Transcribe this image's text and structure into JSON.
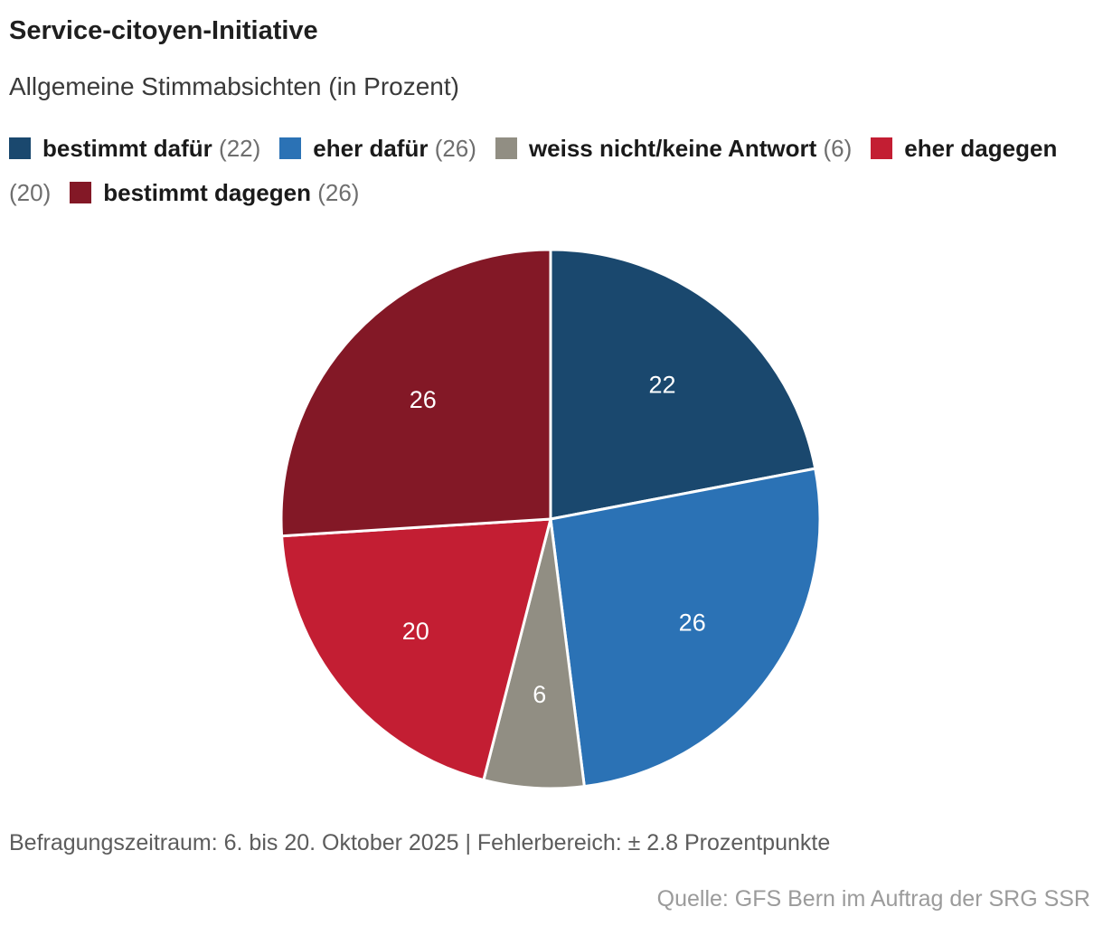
{
  "header": {
    "title": "Service-citoyen-Initiative",
    "subtitle": "Allgemeine Stimmabsichten (in Prozent)"
  },
  "legend": {
    "items": [
      {
        "label": "bestimmt dafür",
        "value": "(22)",
        "color": "#1a486e"
      },
      {
        "label": "eher dafür",
        "value": "(26)",
        "color": "#2b72b5"
      },
      {
        "label": "weiss nicht/keine Antwort",
        "value": "(6)",
        "color": "#918e83"
      },
      {
        "label": "eher dagegen",
        "value": "(20)",
        "color": "#c31e33"
      },
      {
        "label": "bestimmt dagegen",
        "value": "(26)",
        "color": "#831826"
      }
    ]
  },
  "chart_data": {
    "type": "pie",
    "title": "Service-citoyen-Initiative",
    "subtitle": "Allgemeine Stimmabsichten (in Prozent)",
    "unit": "Prozent",
    "categories": [
      "bestimmt dafür",
      "eher dafür",
      "weiss nicht/keine Antwort",
      "eher dagegen",
      "bestimmt dagegen"
    ],
    "values": [
      22,
      26,
      6,
      20,
      26
    ],
    "colors": [
      "#1a486e",
      "#2b72b5",
      "#918e83",
      "#c31e33",
      "#831826"
    ],
    "slice_labels": [
      "22",
      "26",
      "6",
      "20",
      "26"
    ],
    "start_angle_deg": 0,
    "direction": "clockwise",
    "label_color": "#ffffff",
    "separator_color": "#ffffff",
    "legend_position": "top"
  },
  "footer": {
    "survey_info": "Befragungszeitraum: 6. bis 20. Oktober 2025 | Fehlerbereich: ± 2.8 Prozentpunkte",
    "source": "Quelle: GFS Bern im Auftrag der SRG SSR"
  }
}
